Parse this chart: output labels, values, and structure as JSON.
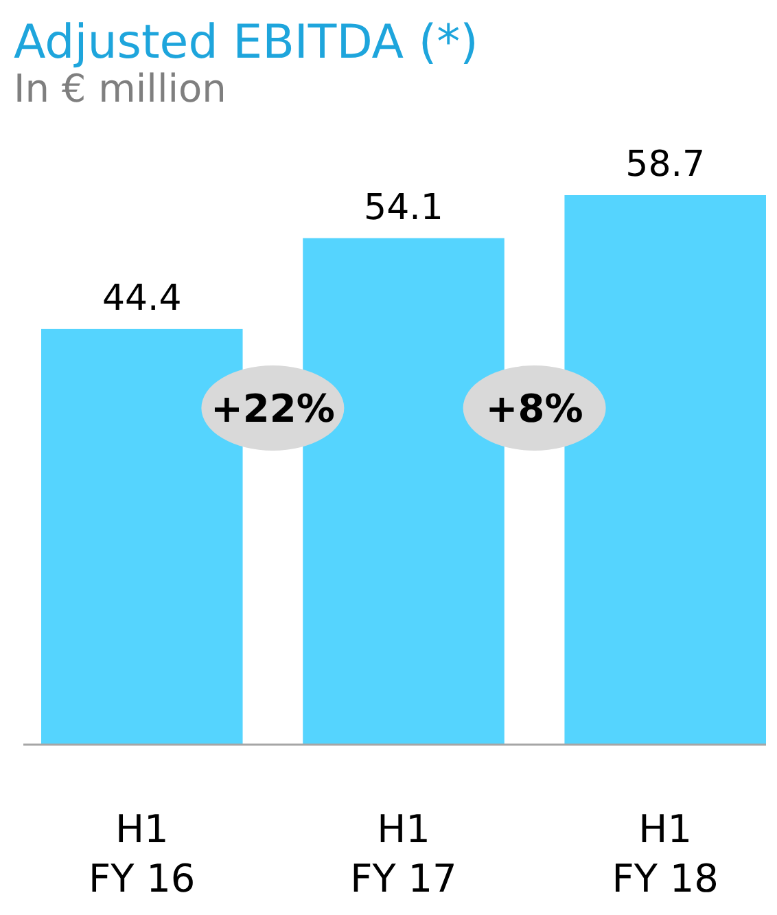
{
  "chart_data": {
    "type": "bar",
    "title": "Adjusted EBITDA (*)",
    "subtitle": "In € million",
    "categories": [
      "H1\nFY 16",
      "H1\nFY 17",
      "H1\nFY 18"
    ],
    "values": [
      44.4,
      54.1,
      58.7
    ],
    "color": "#55d4fe",
    "data_labels": true,
    "annotations": [
      "+22%",
      "+8%"
    ]
  }
}
